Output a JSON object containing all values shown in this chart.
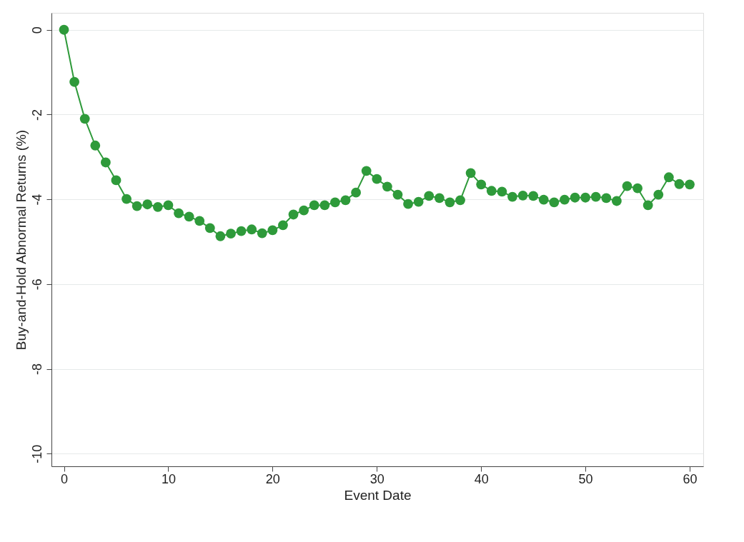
{
  "chart_data": {
    "type": "line",
    "xlabel": "Event Date",
    "ylabel": "Buy-and-Hold Abnormal Returns (%)",
    "x": [
      0,
      1,
      2,
      3,
      4,
      5,
      6,
      7,
      8,
      9,
      10,
      11,
      12,
      13,
      14,
      15,
      16,
      17,
      18,
      19,
      20,
      21,
      22,
      23,
      24,
      25,
      26,
      27,
      28,
      29,
      30,
      31,
      32,
      33,
      34,
      35,
      36,
      37,
      38,
      39,
      40,
      41,
      42,
      43,
      44,
      45,
      46,
      47,
      48,
      49,
      50,
      51,
      52,
      53,
      54,
      55,
      56,
      57,
      58,
      59,
      60
    ],
    "series": [
      {
        "color": "#2e9a3a",
        "values": [
          0,
          -1.23,
          -2.1,
          -2.73,
          -3.13,
          -3.55,
          -3.99,
          -4.16,
          -4.12,
          -4.18,
          -4.14,
          -4.33,
          -4.41,
          -4.51,
          -4.68,
          -4.87,
          -4.81,
          -4.75,
          -4.71,
          -4.8,
          -4.73,
          -4.61,
          -4.36,
          -4.26,
          -4.14,
          -4.14,
          -4.07,
          -4.02,
          -3.84,
          -3.33,
          -3.52,
          -3.7,
          -3.89,
          -4.11,
          -4.06,
          -3.92,
          -3.97,
          -4.07,
          -4.02,
          -3.38,
          -3.65,
          -3.8,
          -3.82,
          -3.94,
          -3.91,
          -3.92,
          -4.01,
          -4.07,
          -4.01,
          -3.96,
          -3.96,
          -3.94,
          -3.97,
          -4.04,
          -3.69,
          -3.74,
          -4.14,
          -3.89,
          -3.48,
          -3.64,
          -3.65
        ]
      }
    ],
    "xlim": [
      -1.2,
      61.3
    ],
    "ylim": [
      -10.3,
      0.4
    ],
    "xticks": [
      0,
      10,
      20,
      30,
      40,
      50,
      60
    ],
    "yticks": [
      0,
      -2,
      -4,
      -6,
      -8,
      -10
    ],
    "grid": "y",
    "marker": "circle",
    "line_style": "solid",
    "legend": false
  }
}
